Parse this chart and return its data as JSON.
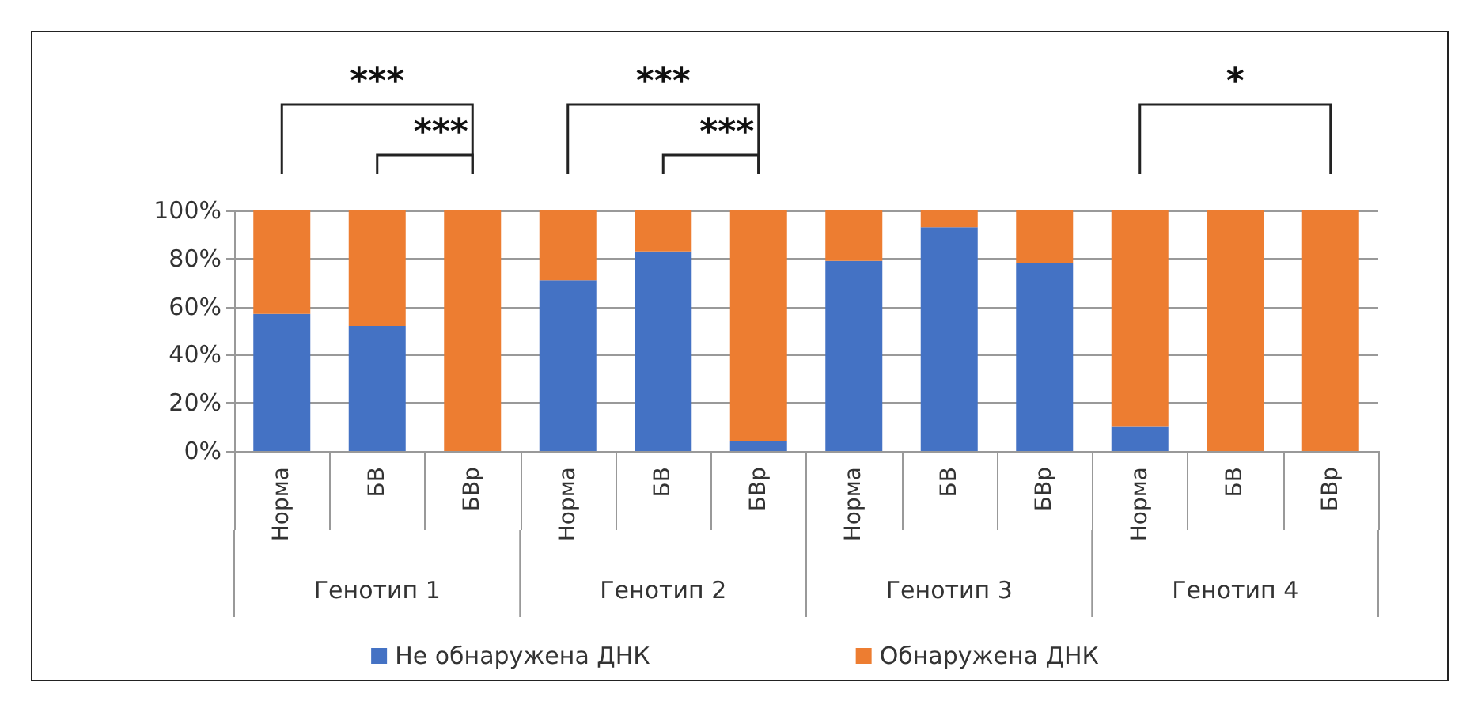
{
  "chart_data": {
    "type": "bar",
    "stacked": true,
    "categories": [
      "Норма",
      "БВ",
      "БВр",
      "Норма",
      "БВ",
      "БВр",
      "Норма",
      "БВ",
      "БВр",
      "Норма",
      "БВ",
      "БВр"
    ],
    "series": [
      {
        "name": "Не обнаружена ДНК",
        "color": "#4472c4",
        "values": [
          57,
          52,
          0,
          71,
          83,
          4,
          79,
          93,
          78,
          10,
          0,
          0
        ]
      },
      {
        "name": "Обнаружена ДНК",
        "color": "#ed7d31",
        "values": [
          43,
          48,
          100,
          29,
          17,
          96,
          21,
          7,
          22,
          90,
          100,
          100
        ]
      }
    ],
    "ylim": [
      0,
      100
    ],
    "yticks": [
      {
        "value": 0,
        "label": "0%"
      },
      {
        "value": 20,
        "label": "20%"
      },
      {
        "value": 40,
        "label": "40%"
      },
      {
        "value": 60,
        "label": "60%"
      },
      {
        "value": 80,
        "label": "80%"
      },
      {
        "value": 100,
        "label": "100%"
      }
    ],
    "grid": "y",
    "legend": "bottom",
    "annotations": [
      "Генотип 1",
      "Генотип 2",
      "Генотип 3",
      "Генотип 4",
      "***",
      "***",
      "***",
      "***",
      "*"
    ]
  }
}
